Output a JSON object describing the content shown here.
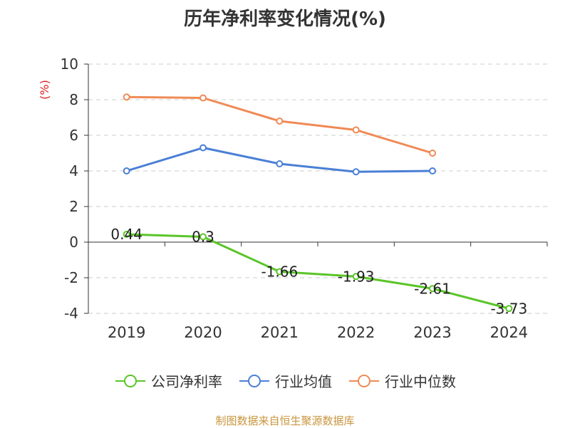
{
  "chart_data": {
    "type": "line",
    "title": "历年净利率变化情况(%)",
    "ylabel": "(%)",
    "xlabel": "",
    "categories": [
      "2019",
      "2020",
      "2021",
      "2022",
      "2023",
      "2024"
    ],
    "ylim": [
      -4,
      10
    ],
    "yticks": [
      "10",
      "8",
      "6",
      "4",
      "2",
      "0",
      "-2",
      "-4"
    ],
    "grid": true,
    "legend_position": "bottom",
    "series": [
      {
        "name": "公司净利率",
        "color": "#5ac528",
        "values": [
          0.44,
          0.3,
          -1.66,
          -1.93,
          -2.61,
          -3.73
        ],
        "labels": [
          "0.44",
          "0.3",
          "-1.66",
          "-1.93",
          "-2.61",
          "-3.73"
        ]
      },
      {
        "name": "行业均值",
        "color": "#4a7fd6",
        "values": [
          4.0,
          5.3,
          4.4,
          3.95,
          4.0,
          null
        ]
      },
      {
        "name": "行业中位数",
        "color": "#f08a55",
        "values": [
          8.15,
          8.1,
          6.8,
          6.3,
          5.0,
          null
        ]
      }
    ]
  },
  "source": "制图数据来自恒生聚源数据库"
}
